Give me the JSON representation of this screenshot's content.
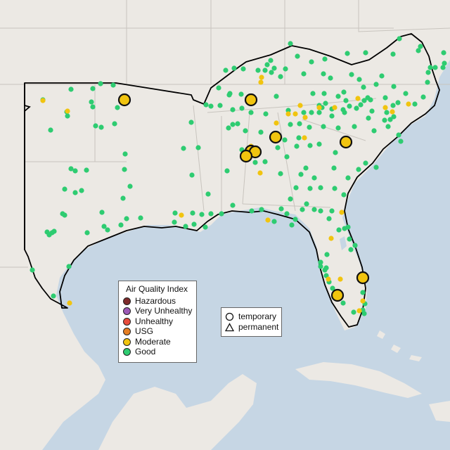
{
  "legend": {
    "title": "Air Quality Index",
    "items": [
      {
        "label": "Hazardous",
        "color": "#7e2b2b"
      },
      {
        "label": "Very Unhealthy",
        "color": "#9b59b6"
      },
      {
        "label": "Unhealthy",
        "color": "#e74c3c"
      },
      {
        "label": "USG",
        "color": "#e67e22"
      },
      {
        "label": "Moderate",
        "color": "#f1c40f"
      },
      {
        "label": "Good",
        "color": "#2ecc71"
      }
    ]
  },
  "site_types": {
    "items": [
      {
        "label": "temporary",
        "icon": "circle-icon"
      },
      {
        "label": "permanent",
        "icon": "triangle-icon"
      }
    ]
  },
  "colors": {
    "ocean": "#c6d6e4",
    "land": "#ece9e4",
    "region_outline": "#000000",
    "good": "#2ecc71",
    "moderate": "#f1c40f"
  }
}
